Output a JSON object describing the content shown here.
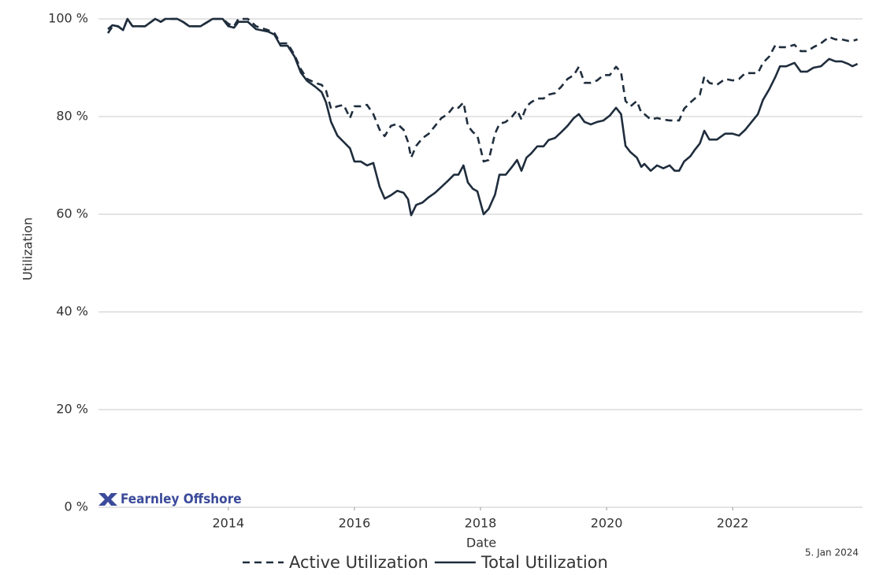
{
  "chart_data": {
    "type": "line",
    "xlabel": "Date",
    "ylabel": "Utilization",
    "logo": "Fearnley Offshore",
    "note": "5. Jan 2024",
    "grid": true,
    "legend": "bottom",
    "xlim": [
      2011.94,
      2024.06
    ],
    "xticks": [
      2014,
      2016,
      2018,
      2020,
      2022
    ],
    "ylim": [
      0,
      100
    ],
    "yticks": [
      {
        "value": 0,
        "label": "0 %"
      },
      {
        "value": 20,
        "label": "20 %"
      },
      {
        "value": 40,
        "label": "40 %"
      },
      {
        "value": 60,
        "label": "60 %"
      },
      {
        "value": 80,
        "label": "80 %"
      },
      {
        "value": 100,
        "label": "100 %"
      }
    ],
    "x": [
      2012.09,
      2012.16,
      2012.25,
      2012.33,
      2012.4,
      2012.48,
      2012.58,
      2012.68,
      2012.84,
      2012.93,
      2013.0,
      2013.19,
      2013.28,
      2013.38,
      2013.56,
      2013.75,
      2013.91,
      2014.0,
      2014.09,
      2014.16,
      2014.31,
      2014.44,
      2014.63,
      2014.73,
      2014.83,
      2014.94,
      2015.05,
      2015.15,
      2015.25,
      2015.38,
      2015.48,
      2015.55,
      2015.63,
      2015.73,
      2015.83,
      2015.93,
      2016.0,
      2016.1,
      2016.2,
      2016.3,
      2016.4,
      2016.48,
      2016.58,
      2016.68,
      2016.78,
      2016.85,
      2016.9,
      2016.98,
      2017.08,
      2017.18,
      2017.28,
      2017.38,
      2017.48,
      2017.58,
      2017.65,
      2017.73,
      2017.8,
      2017.88,
      2017.95,
      2018.05,
      2018.13,
      2018.23,
      2018.3,
      2018.4,
      2018.5,
      2018.58,
      2018.65,
      2018.73,
      2018.8,
      2018.9,
      2019.0,
      2019.08,
      2019.18,
      2019.28,
      2019.38,
      2019.48,
      2019.56,
      2019.65,
      2019.75,
      2019.85,
      2019.95,
      2020.05,
      2020.15,
      2020.23,
      2020.3,
      2020.38,
      2020.48,
      2020.55,
      2020.6,
      2020.7,
      2020.8,
      2020.9,
      2021.0,
      2021.08,
      2021.15,
      2021.23,
      2021.33,
      2021.4,
      2021.48,
      2021.55,
      2021.63,
      2021.75,
      2021.88,
      2022.0,
      2022.1,
      2022.2,
      2022.3,
      2022.4,
      2022.48,
      2022.58,
      2022.68,
      2022.75,
      2022.85,
      2022.98,
      2023.08,
      2023.18,
      2023.28,
      2023.4,
      2023.53,
      2023.63,
      2023.73,
      2023.83,
      2023.9,
      2023.98
    ],
    "series": [
      {
        "name": "Active Utilization",
        "color": "#1f2d3d",
        "style": "dashed",
        "values": [
          97.1,
          98.4,
          98.5,
          97.7,
          100,
          98.5,
          98.5,
          98.5,
          100,
          99.4,
          100,
          100,
          99.4,
          98.5,
          98.5,
          100,
          100,
          99.0,
          98.5,
          100,
          100,
          98.5,
          97.7,
          97.1,
          95.0,
          95.0,
          92.6,
          89.7,
          87.7,
          86.9,
          86.5,
          85.3,
          81.6,
          82.1,
          82.4,
          79.7,
          82.1,
          82.1,
          82.4,
          80.5,
          77.3,
          76.0,
          78.1,
          78.5,
          77.3,
          74.8,
          71.6,
          74.0,
          75.6,
          76.5,
          78.1,
          79.7,
          80.5,
          82.1,
          81.8,
          82.9,
          78.1,
          76.8,
          76.1,
          70.8,
          71.1,
          76.5,
          78.5,
          78.9,
          80.0,
          81.3,
          79.4,
          82.1,
          82.9,
          83.7,
          83.7,
          84.5,
          84.8,
          86.1,
          87.7,
          88.5,
          90.2,
          86.9,
          86.9,
          87.4,
          88.5,
          88.5,
          90.2,
          89.0,
          83.2,
          82.1,
          83.2,
          80.8,
          80.5,
          79.4,
          79.7,
          79.4,
          79.2,
          79.2,
          79.2,
          81.6,
          82.9,
          83.7,
          84.5,
          88.2,
          86.9,
          86.5,
          87.7,
          87.4,
          87.7,
          88.9,
          88.9,
          88.9,
          91.0,
          92.3,
          94.7,
          94.2,
          94.2,
          94.7,
          93.4,
          93.4,
          94.2,
          95.0,
          96.3,
          95.8,
          95.8,
          95.5,
          95.5,
          95.8
        ]
      },
      {
        "name": "Total Utilization",
        "color": "#1f2d3d",
        "style": "solid",
        "values": [
          97.9,
          98.7,
          98.5,
          97.7,
          100,
          98.5,
          98.5,
          98.5,
          100,
          99.4,
          100,
          100,
          99.4,
          98.5,
          98.5,
          100,
          100,
          98.5,
          98.2,
          99.4,
          99.4,
          97.9,
          97.4,
          96.8,
          94.5,
          94.5,
          92.3,
          89.0,
          87.3,
          86.1,
          85.0,
          82.9,
          78.9,
          76.1,
          74.8,
          73.5,
          70.8,
          70.8,
          70.0,
          70.5,
          65.6,
          63.2,
          63.9,
          64.8,
          64.4,
          63.1,
          59.8,
          61.9,
          62.4,
          63.5,
          64.4,
          65.6,
          66.8,
          68.1,
          68.1,
          70.0,
          66.5,
          65.2,
          64.7,
          60.0,
          61.1,
          64.0,
          68.1,
          68.1,
          69.7,
          71.1,
          68.9,
          71.6,
          72.4,
          73.9,
          73.9,
          75.2,
          75.6,
          76.8,
          78.1,
          79.7,
          80.5,
          78.9,
          78.4,
          78.9,
          79.2,
          80.2,
          81.8,
          80.5,
          74.0,
          72.7,
          71.6,
          69.7,
          70.3,
          68.9,
          70.0,
          69.4,
          70.0,
          68.9,
          68.9,
          70.8,
          71.9,
          73.2,
          74.5,
          77.1,
          75.3,
          75.3,
          76.5,
          76.5,
          76.1,
          77.3,
          78.9,
          80.5,
          83.4,
          85.6,
          88.2,
          90.3,
          90.3,
          91.0,
          89.2,
          89.2,
          90.0,
          90.3,
          91.8,
          91.3,
          91.3,
          90.8,
          90.3,
          90.8
        ]
      }
    ]
  }
}
